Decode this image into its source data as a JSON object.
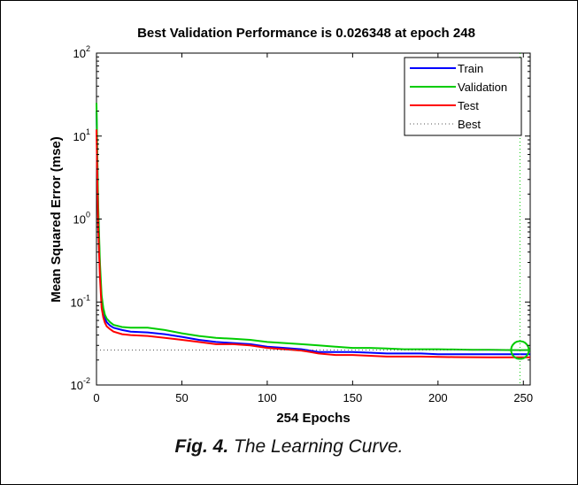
{
  "chart_data": {
    "type": "line",
    "title": "Best Validation Performance is 0.026348 at epoch 248",
    "xlabel": "254 Epochs",
    "ylabel": "Mean Squared Error  (mse)",
    "xlim": [
      0,
      254
    ],
    "ylim": [
      0.01,
      100
    ],
    "yscale": "log",
    "xticks": [
      0,
      50,
      100,
      150,
      200,
      250
    ],
    "yticks": [
      {
        "base": "10",
        "exp": "-2",
        "value": 0.01
      },
      {
        "base": "10",
        "exp": "-1",
        "value": 0.1
      },
      {
        "base": "10",
        "exp": "0",
        "value": 1
      },
      {
        "base": "10",
        "exp": "1",
        "value": 10
      },
      {
        "base": "10",
        "exp": "2",
        "value": 100
      }
    ],
    "grid": false,
    "legend_position": "top-right",
    "series": [
      {
        "name": "Train",
        "color": "#0000ff",
        "x": [
          0,
          1,
          2,
          3,
          4,
          5,
          6,
          8,
          10,
          15,
          20,
          30,
          40,
          50,
          60,
          70,
          80,
          90,
          100,
          110,
          120,
          125,
          130,
          140,
          150,
          160,
          170,
          180,
          190,
          200,
          210,
          220,
          230,
          240,
          248,
          254
        ],
        "y": [
          20,
          1.2,
          0.25,
          0.1,
          0.075,
          0.063,
          0.057,
          0.052,
          0.049,
          0.046,
          0.044,
          0.043,
          0.041,
          0.038,
          0.035,
          0.033,
          0.032,
          0.031,
          0.029,
          0.028,
          0.027,
          0.026,
          0.025,
          0.025,
          0.025,
          0.0245,
          0.024,
          0.024,
          0.024,
          0.0235,
          0.0235,
          0.0235,
          0.0235,
          0.0235,
          0.0235,
          0.0235
        ]
      },
      {
        "name": "Validation",
        "color": "#00cc00",
        "x": [
          0,
          1,
          2,
          3,
          4,
          5,
          6,
          8,
          10,
          15,
          20,
          30,
          40,
          50,
          60,
          70,
          80,
          90,
          100,
          110,
          120,
          130,
          140,
          150,
          160,
          170,
          180,
          190,
          200,
          210,
          220,
          230,
          240,
          248,
          254
        ],
        "y": [
          25,
          1.5,
          0.3,
          0.12,
          0.085,
          0.07,
          0.063,
          0.057,
          0.053,
          0.05,
          0.049,
          0.049,
          0.046,
          0.042,
          0.039,
          0.037,
          0.036,
          0.035,
          0.033,
          0.032,
          0.031,
          0.03,
          0.029,
          0.028,
          0.028,
          0.0275,
          0.027,
          0.027,
          0.027,
          0.0268,
          0.0266,
          0.0265,
          0.0264,
          0.026348,
          0.0264
        ]
      },
      {
        "name": "Test",
        "color": "#ff0000",
        "x": [
          0,
          1,
          2,
          3,
          4,
          5,
          6,
          8,
          10,
          15,
          20,
          30,
          40,
          50,
          60,
          70,
          80,
          90,
          100,
          110,
          120,
          125,
          130,
          140,
          150,
          160,
          170,
          180,
          190,
          200,
          210,
          220,
          230,
          240,
          248,
          254
        ],
        "y": [
          12,
          0.8,
          0.2,
          0.085,
          0.065,
          0.056,
          0.051,
          0.047,
          0.044,
          0.041,
          0.04,
          0.039,
          0.037,
          0.035,
          0.033,
          0.031,
          0.031,
          0.03,
          0.028,
          0.027,
          0.026,
          0.025,
          0.024,
          0.023,
          0.023,
          0.0225,
          0.022,
          0.022,
          0.022,
          0.0218,
          0.0217,
          0.0216,
          0.0215,
          0.0215,
          0.0215,
          0.0215
        ]
      }
    ],
    "best": {
      "name": "Best",
      "epoch": 248,
      "value": 0.026348,
      "color": "#00cc00"
    }
  },
  "caption": {
    "fig": "Fig. 4.",
    "text": " The Learning Curve."
  }
}
